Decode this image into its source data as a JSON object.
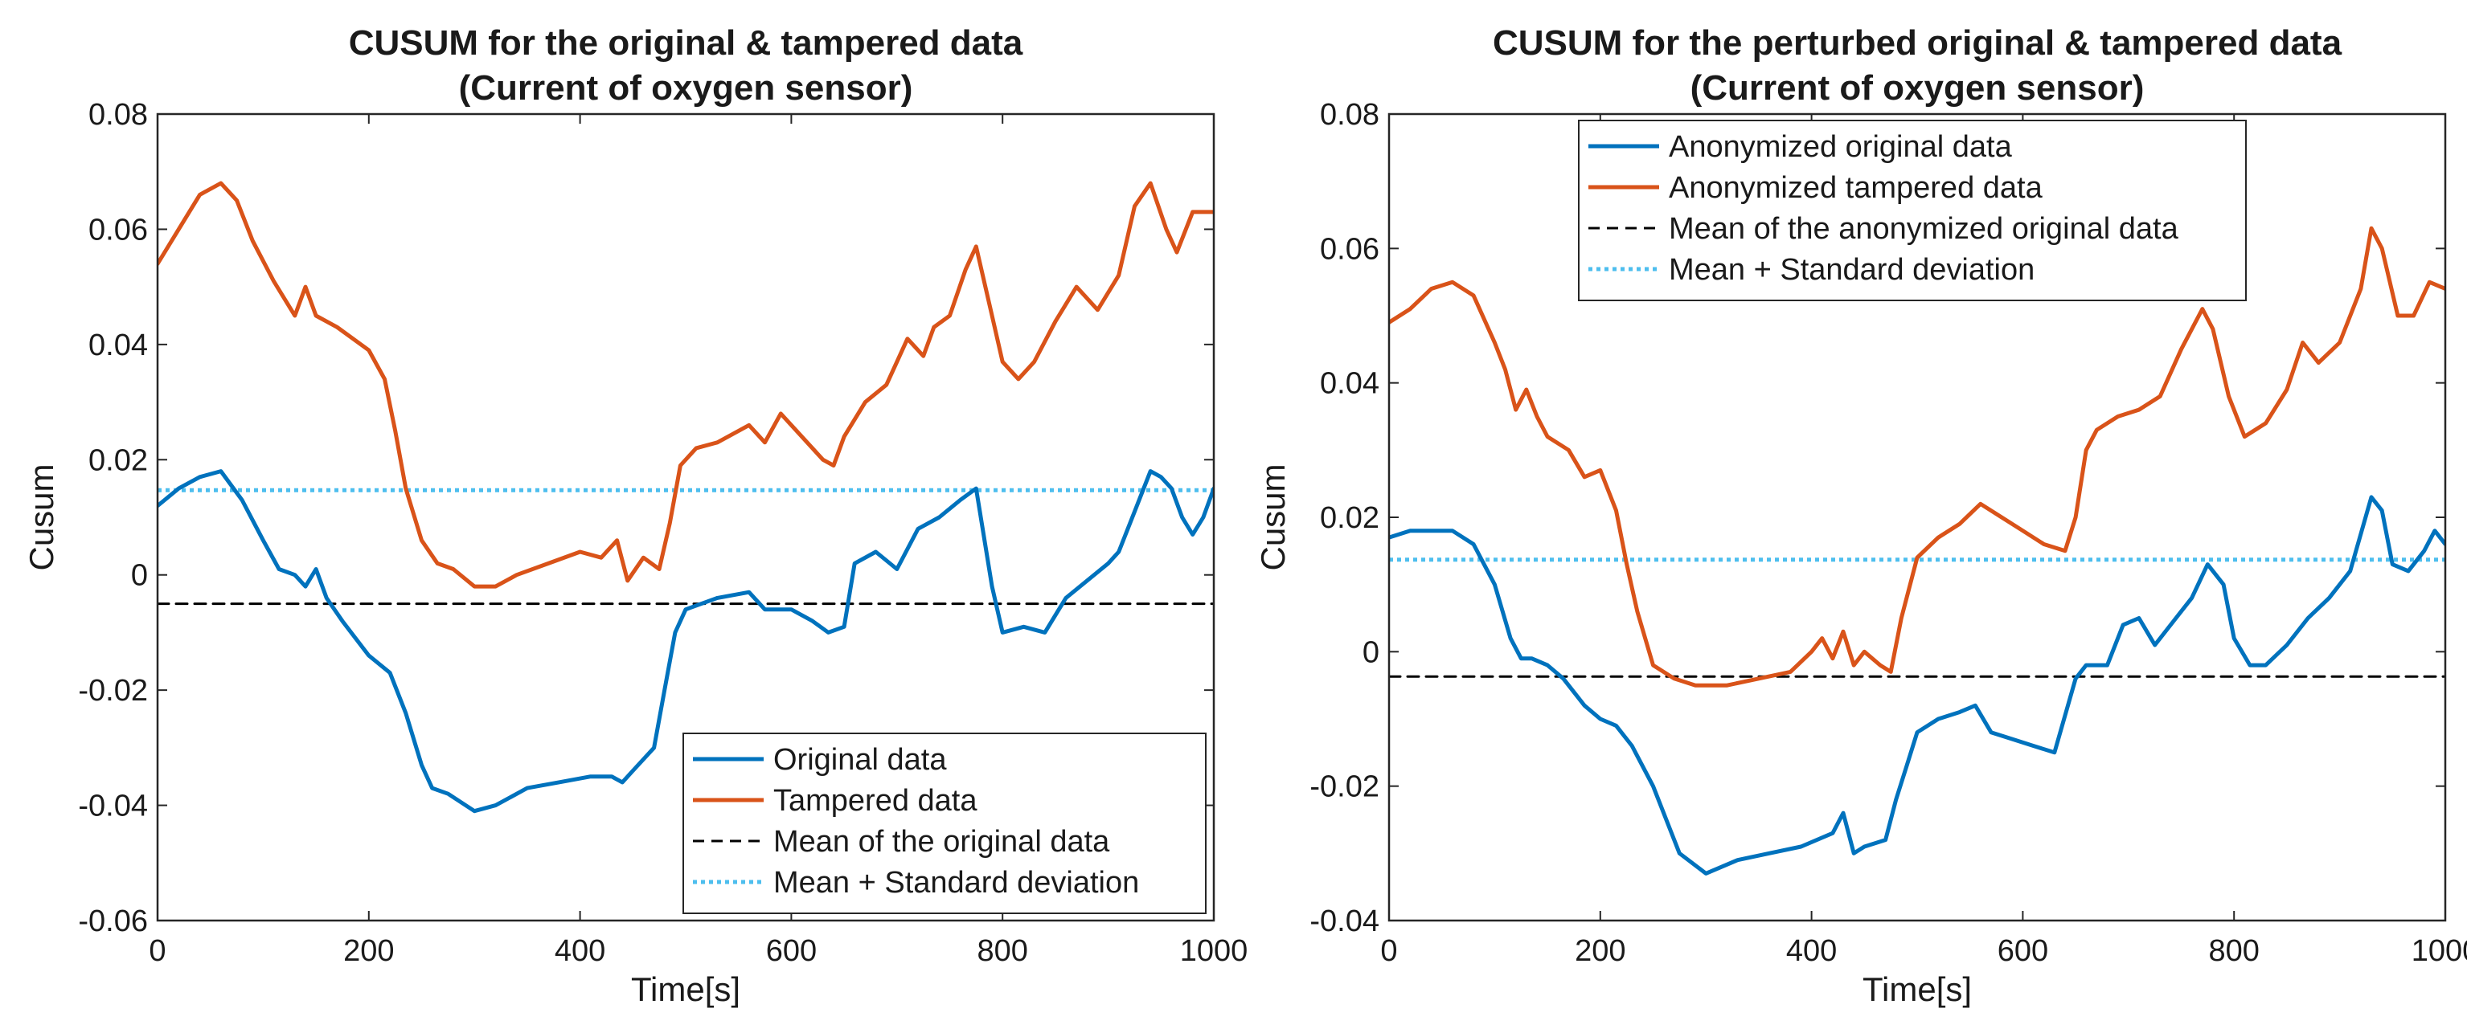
{
  "chart_data": [
    {
      "type": "line",
      "title": "CUSUM for the original & tampered data",
      "subtitle": "(Current of oxygen sensor)",
      "xlabel": "Time[s]",
      "ylabel": "Cusum",
      "xlim": [
        0,
        1000
      ],
      "ylim": [
        -0.06,
        0.08
      ],
      "xticks": [
        0,
        200,
        400,
        600,
        800,
        1000
      ],
      "yticks": [
        -0.06,
        -0.04,
        -0.02,
        0,
        0.02,
        0.04,
        0.06,
        0.08
      ],
      "xtick_labels": [
        "0",
        "200",
        "400",
        "600",
        "800",
        "1000"
      ],
      "ytick_labels": [
        "-0.06",
        "-0.04",
        "-0.02",
        "0",
        "0.02",
        "0.04",
        "0.06",
        "0.08"
      ],
      "legend_position": "bottom-right",
      "legend": [
        "Original data",
        "Tampered data",
        "Mean of the original data",
        "Mean + Standard deviation"
      ],
      "series": [
        {
          "name": "Original data",
          "color": "#0072BD",
          "style": "solid",
          "x": [
            0,
            20,
            40,
            60,
            80,
            100,
            115,
            130,
            140,
            150,
            160,
            175,
            200,
            220,
            235,
            250,
            260,
            275,
            300,
            320,
            350,
            380,
            410,
            430,
            440,
            450,
            470,
            480,
            490,
            500,
            530,
            560,
            575,
            600,
            620,
            635,
            650,
            660,
            680,
            700,
            720,
            740,
            760,
            775,
            790,
            800,
            820,
            840,
            860,
            880,
            900,
            910,
            925,
            940,
            950,
            960,
            970,
            980,
            990,
            1000
          ],
          "values": [
            0.012,
            0.015,
            0.017,
            0.018,
            0.013,
            0.006,
            0.001,
            0.0,
            -0.002,
            0.001,
            -0.004,
            -0.008,
            -0.014,
            -0.017,
            -0.024,
            -0.033,
            -0.037,
            -0.038,
            -0.041,
            -0.04,
            -0.037,
            -0.036,
            -0.035,
            -0.035,
            -0.036,
            -0.034,
            -0.03,
            -0.02,
            -0.01,
            -0.006,
            -0.004,
            -0.003,
            -0.006,
            -0.006,
            -0.008,
            -0.01,
            -0.009,
            0.002,
            0.004,
            0.001,
            0.008,
            0.01,
            0.013,
            0.015,
            -0.002,
            -0.01,
            -0.009,
            -0.01,
            -0.004,
            -0.001,
            0.002,
            0.004,
            0.011,
            0.018,
            0.017,
            0.015,
            0.01,
            0.007,
            0.01,
            0.015
          ]
        },
        {
          "name": "Tampered data",
          "color": "#D95319",
          "style": "solid",
          "x": [
            0,
            20,
            40,
            60,
            75,
            90,
            110,
            130,
            140,
            150,
            170,
            200,
            215,
            225,
            235,
            250,
            265,
            280,
            300,
            320,
            340,
            370,
            400,
            420,
            435,
            445,
            460,
            475,
            485,
            495,
            510,
            530,
            560,
            575,
            590,
            610,
            630,
            640,
            650,
            670,
            690,
            700,
            710,
            725,
            735,
            750,
            765,
            775,
            790,
            800,
            815,
            830,
            850,
            870,
            890,
            910,
            925,
            940,
            955,
            965,
            980,
            1000
          ],
          "values": [
            0.054,
            0.06,
            0.066,
            0.068,
            0.065,
            0.058,
            0.051,
            0.045,
            0.05,
            0.045,
            0.043,
            0.039,
            0.034,
            0.025,
            0.015,
            0.006,
            0.002,
            0.001,
            -0.002,
            -0.002,
            0.0,
            0.002,
            0.004,
            0.003,
            0.006,
            -0.001,
            0.003,
            0.001,
            0.009,
            0.019,
            0.022,
            0.023,
            0.026,
            0.023,
            0.028,
            0.024,
            0.02,
            0.019,
            0.024,
            0.03,
            0.033,
            0.037,
            0.041,
            0.038,
            0.043,
            0.045,
            0.053,
            0.057,
            0.045,
            0.037,
            0.034,
            0.037,
            0.044,
            0.05,
            0.046,
            0.052,
            0.064,
            0.068,
            0.06,
            0.056,
            0.063,
            0.063
          ]
        },
        {
          "name": "Mean of the original data",
          "color": "#000000",
          "style": "dashed",
          "x": [
            0,
            1000
          ],
          "values": [
            -0.005,
            -0.005
          ]
        },
        {
          "name": "Mean + Standard deviation",
          "color": "#4DBEEE",
          "style": "dotted",
          "x": [
            0,
            1000
          ],
          "values": [
            0.0147,
            0.0147
          ]
        }
      ]
    },
    {
      "type": "line",
      "title": "CUSUM for the perturbed original & tampered data",
      "subtitle": "(Current of oxygen sensor)",
      "xlabel": "Time[s]",
      "ylabel": "Cusum",
      "xlim": [
        0,
        1000
      ],
      "ylim": [
        -0.04,
        0.08
      ],
      "xticks": [
        0,
        200,
        400,
        600,
        800,
        1000
      ],
      "yticks": [
        -0.04,
        -0.02,
        0,
        0.02,
        0.04,
        0.06,
        0.08
      ],
      "xtick_labels": [
        "0",
        "200",
        "400",
        "600",
        "800",
        "1000"
      ],
      "ytick_labels": [
        "-0.04",
        "-0.02",
        "0",
        "0.02",
        "0.04",
        "0.06",
        "0.08"
      ],
      "legend_position": "top-left",
      "legend": [
        "Anonymized original data",
        "Anonymized tampered data",
        "Mean of the anonymized original data",
        "Mean + Standard deviation"
      ],
      "series": [
        {
          "name": "Anonymized original data",
          "color": "#0072BD",
          "style": "solid",
          "x": [
            0,
            20,
            40,
            60,
            80,
            100,
            115,
            125,
            135,
            150,
            165,
            185,
            200,
            215,
            230,
            250,
            260,
            275,
            300,
            330,
            360,
            390,
            420,
            430,
            440,
            450,
            470,
            480,
            490,
            500,
            520,
            540,
            555,
            570,
            590,
            610,
            630,
            650,
            660,
            680,
            695,
            710,
            725,
            745,
            760,
            775,
            790,
            800,
            815,
            830,
            850,
            870,
            890,
            910,
            930,
            940,
            950,
            965,
            980,
            990,
            1000
          ],
          "values": [
            0.017,
            0.018,
            0.018,
            0.018,
            0.016,
            0.01,
            0.002,
            -0.001,
            -0.001,
            -0.002,
            -0.004,
            -0.008,
            -0.01,
            -0.011,
            -0.014,
            -0.02,
            -0.024,
            -0.03,
            -0.033,
            -0.031,
            -0.03,
            -0.029,
            -0.027,
            -0.024,
            -0.03,
            -0.029,
            -0.028,
            -0.022,
            -0.017,
            -0.012,
            -0.01,
            -0.009,
            -0.008,
            -0.012,
            -0.013,
            -0.014,
            -0.015,
            -0.004,
            -0.002,
            -0.002,
            0.004,
            0.005,
            0.001,
            0.005,
            0.008,
            0.013,
            0.01,
            0.002,
            -0.002,
            -0.002,
            0.001,
            0.005,
            0.008,
            0.012,
            0.023,
            0.021,
            0.013,
            0.012,
            0.015,
            0.018,
            0.016
          ]
        },
        {
          "name": "Anonymized tampered data",
          "color": "#D95319",
          "style": "solid",
          "x": [
            0,
            20,
            40,
            60,
            80,
            100,
            110,
            120,
            130,
            140,
            150,
            170,
            185,
            200,
            215,
            225,
            235,
            250,
            270,
            290,
            320,
            350,
            380,
            400,
            410,
            420,
            430,
            440,
            450,
            465,
            475,
            485,
            500,
            520,
            540,
            560,
            580,
            600,
            620,
            640,
            650,
            660,
            670,
            690,
            710,
            730,
            750,
            770,
            780,
            795,
            810,
            830,
            850,
            865,
            880,
            900,
            920,
            930,
            940,
            955,
            970,
            985,
            1000
          ],
          "values": [
            0.049,
            0.051,
            0.054,
            0.055,
            0.053,
            0.046,
            0.042,
            0.036,
            0.039,
            0.035,
            0.032,
            0.03,
            0.026,
            0.027,
            0.021,
            0.013,
            0.006,
            -0.002,
            -0.004,
            -0.005,
            -0.005,
            -0.004,
            -0.003,
            0.0,
            0.002,
            -0.001,
            0.003,
            -0.002,
            0.0,
            -0.002,
            -0.003,
            0.005,
            0.014,
            0.017,
            0.019,
            0.022,
            0.02,
            0.018,
            0.016,
            0.015,
            0.02,
            0.03,
            0.033,
            0.035,
            0.036,
            0.038,
            0.045,
            0.051,
            0.048,
            0.038,
            0.032,
            0.034,
            0.039,
            0.046,
            0.043,
            0.046,
            0.054,
            0.063,
            0.06,
            0.05,
            0.05,
            0.055,
            0.054
          ]
        },
        {
          "name": "Mean of the anonymized original data",
          "color": "#000000",
          "style": "dashed",
          "x": [
            0,
            1000
          ],
          "values": [
            -0.0037,
            -0.0037
          ]
        },
        {
          "name": "Mean + Standard deviation",
          "color": "#4DBEEE",
          "style": "dotted",
          "x": [
            0,
            1000
          ],
          "values": [
            0.0137,
            0.0137
          ]
        }
      ]
    }
  ]
}
